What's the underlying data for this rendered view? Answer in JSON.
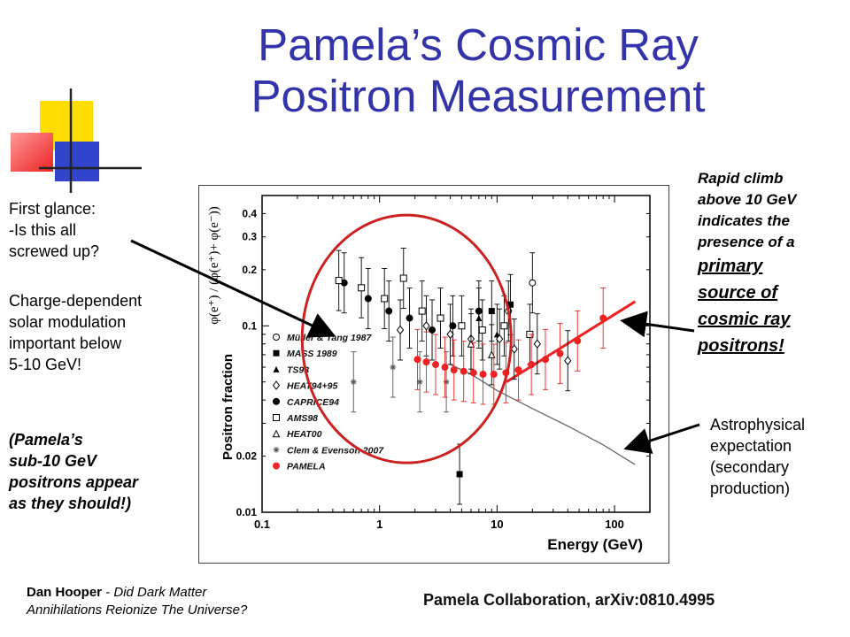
{
  "slide": {
    "title_line1": "Pamela’s Cosmic Ray",
    "title_line2": "Positron Measurement",
    "title_color": "#3333aa",
    "notes_left": {
      "first_glance_1": "First glance:",
      "first_glance_2": "-Is this all",
      "first_glance_3": "screwed up?",
      "charge_1": "Charge-dependent",
      "charge_2": "solar modulation",
      "charge_3": "important below",
      "charge_4": "5-10 GeV!",
      "pamela_1": "(Pamela’s",
      "pamela_2": "sub-10 GeV",
      "pamela_3": "positrons appear",
      "pamela_4": "as they should!)"
    },
    "notes_right": {
      "climb_1": "Rapid climb",
      "climb_2": "above 10 GeV",
      "climb_3": "indicates the",
      "climb_4": "presence of a",
      "climb_5": "primary",
      "climb_6": "source of",
      "climb_7": "cosmic ray",
      "climb_8": "positrons!",
      "astro_1": "Astrophysical",
      "astro_2": "expectation",
      "astro_3": "(secondary",
      "astro_4": "production)"
    },
    "footer": {
      "author": "Dan Hooper",
      "separator": " - ",
      "talk_1": "Did Dark Matter",
      "talk_2": "Annihilations Reionize The Universe?"
    },
    "citation": "Pamela Collaboration, arXiv:0810.4995",
    "annotation_color": "#cc2222",
    "arrow_color": "#000000"
  },
  "chart_data": {
    "type": "scatter",
    "xlabel": "Energy (GeV)",
    "ylabel": "Positron fraction",
    "ylabel_formula": "φ(e⁺) / (φ(e⁺)+ φ(e⁻))",
    "xscale": "log",
    "yscale": "log",
    "xlim": [
      0.1,
      200
    ],
    "ylim": [
      0.01,
      0.5
    ],
    "xticks": [
      0.1,
      1,
      10,
      100
    ],
    "xtick_labels": [
      "0.1",
      "1",
      "10",
      "100"
    ],
    "yticks": [
      0.01,
      0.02,
      0.1,
      0.2,
      0.3,
      0.4
    ],
    "ytick_labels": [
      "0.01",
      "0.02",
      "0.1",
      "0.2",
      "0.3",
      "0.4"
    ],
    "legend_position": "lower-left",
    "series": [
      {
        "name": "Müller & Tang 1987",
        "marker": "circle-open",
        "color": "#000000",
        "points": [
          [
            12.5,
            0.12
          ],
          [
            20,
            0.17
          ]
        ]
      },
      {
        "name": "MASS 1989",
        "marker": "square-filled",
        "color": "#000000",
        "points": [
          [
            4.8,
            0.016
          ],
          [
            9,
            0.12
          ],
          [
            13,
            0.13
          ]
        ]
      },
      {
        "name": "TS93",
        "marker": "triangle-filled",
        "color": "#000000",
        "points": [
          [
            7,
            0.11
          ],
          [
            10,
            0.09
          ]
        ]
      },
      {
        "name": "HEAT94+95",
        "marker": "diamond-open",
        "color": "#000000",
        "points": [
          [
            1.5,
            0.095
          ],
          [
            2.5,
            0.1
          ],
          [
            4,
            0.09
          ],
          [
            6,
            0.085
          ],
          [
            10.5,
            0.085
          ],
          [
            14,
            0.075
          ],
          [
            22,
            0.08
          ],
          [
            40,
            0.065
          ]
        ]
      },
      {
        "name": "CAPRICE94",
        "marker": "circle-filled",
        "color": "#000000",
        "points": [
          [
            0.5,
            0.17
          ],
          [
            0.8,
            0.14
          ],
          [
            1.2,
            0.12
          ],
          [
            1.8,
            0.11
          ],
          [
            2.8,
            0.095
          ],
          [
            4.2,
            0.1
          ],
          [
            7,
            0.12
          ]
        ]
      },
      {
        "name": "AMS98",
        "marker": "square-open",
        "color": "#000000",
        "points": [
          [
            0.45,
            0.175
          ],
          [
            0.7,
            0.16
          ],
          [
            1.1,
            0.14
          ],
          [
            1.6,
            0.18
          ],
          [
            2.3,
            0.12
          ],
          [
            3.3,
            0.11
          ],
          [
            5,
            0.1
          ],
          [
            7.5,
            0.095
          ],
          [
            11.5,
            0.1
          ],
          [
            19,
            0.09
          ]
        ]
      },
      {
        "name": "HEAT00",
        "marker": "triangle-open",
        "color": "#000000",
        "points": [
          [
            6,
            0.08
          ],
          [
            9,
            0.07
          ]
        ]
      },
      {
        "name": "Clem & Evenson 2007",
        "marker": "star",
        "color": "#555555",
        "points": [
          [
            0.6,
            0.05
          ],
          [
            1.3,
            0.06
          ],
          [
            2.2,
            0.05
          ],
          [
            3.7,
            0.05
          ]
        ]
      },
      {
        "name": "PAMELA",
        "marker": "circle-filled",
        "color": "#ee2222",
        "points": [
          [
            2.1,
            0.066
          ],
          [
            2.5,
            0.064
          ],
          [
            3.0,
            0.062
          ],
          [
            3.6,
            0.06
          ],
          [
            4.3,
            0.058
          ],
          [
            5.2,
            0.057
          ],
          [
            6.3,
            0.056
          ],
          [
            7.6,
            0.055
          ],
          [
            9.4,
            0.055
          ],
          [
            11.9,
            0.056
          ],
          [
            15.2,
            0.058
          ],
          [
            19.6,
            0.062
          ],
          [
            25.8,
            0.066
          ],
          [
            34.4,
            0.071
          ],
          [
            48.4,
            0.083
          ],
          [
            80,
            0.11
          ]
        ]
      }
    ],
    "curves": [
      {
        "name": "Astrophysical expectation",
        "color": "#666666",
        "points": [
          [
            4,
            0.062
          ],
          [
            6,
            0.055
          ],
          [
            10,
            0.045
          ],
          [
            20,
            0.036
          ],
          [
            40,
            0.029
          ],
          [
            80,
            0.023
          ],
          [
            150,
            0.018
          ]
        ]
      },
      {
        "name": "primary source fit",
        "color": "#ee2222",
        "points": [
          [
            12,
            0.05
          ],
          [
            150,
            0.135
          ]
        ]
      }
    ]
  }
}
